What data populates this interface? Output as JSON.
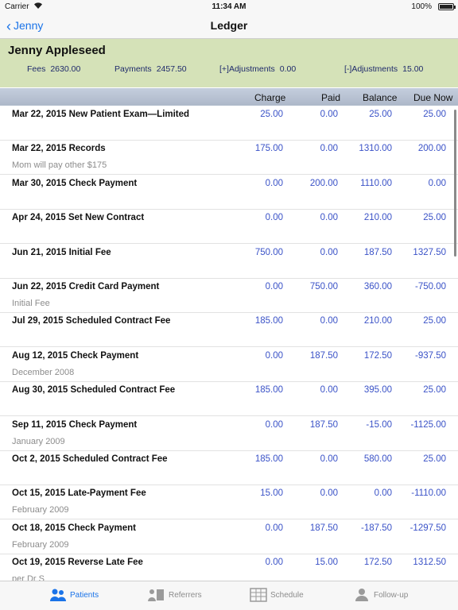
{
  "status": {
    "carrier": "Carrier",
    "time": "11:34 AM",
    "battery": "100%"
  },
  "nav": {
    "back_label": "Jenny",
    "title": "Ledger"
  },
  "patient": {
    "name": "Jenny Appleseed",
    "fees_label": "Fees",
    "fees": "2630.00",
    "payments_label": "Payments",
    "payments": "2457.50",
    "plus_adj_label": "[+]Adjustments",
    "plus_adj": "0.00",
    "minus_adj_label": "[-]Adjustments",
    "minus_adj": "15.00"
  },
  "columns": {
    "charge": "Charge",
    "paid": "Paid",
    "balance": "Balance",
    "due": "Due Now"
  },
  "rows": [
    {
      "desc": "Mar 22, 2015 New Patient Exam—Limited",
      "note": "",
      "charge": "25.00",
      "paid": "0.00",
      "balance": "25.00",
      "due": "25.00"
    },
    {
      "desc": "Mar 22, 2015 Records",
      "note": "Mom will pay other $175",
      "charge": "175.00",
      "paid": "0.00",
      "balance": "1310.00",
      "due": "200.00"
    },
    {
      "desc": "Mar 30, 2015 Check Payment",
      "note": "",
      "charge": "0.00",
      "paid": "200.00",
      "balance": "1110.00",
      "due": "0.00"
    },
    {
      "desc": "Apr 24, 2015 Set New Contract",
      "note": "",
      "charge": "0.00",
      "paid": "0.00",
      "balance": "210.00",
      "due": "25.00"
    },
    {
      "desc": "Jun 21, 2015 Initial Fee",
      "note": "",
      "charge": "750.00",
      "paid": "0.00",
      "balance": "187.50",
      "due": "1327.50"
    },
    {
      "desc": "Jun 22, 2015 Credit Card Payment",
      "note": "Initial Fee",
      "charge": "0.00",
      "paid": "750.00",
      "balance": "360.00",
      "due": "-750.00"
    },
    {
      "desc": "Jul 29, 2015 Scheduled Contract Fee",
      "note": "",
      "charge": "185.00",
      "paid": "0.00",
      "balance": "210.00",
      "due": "25.00"
    },
    {
      "desc": "Aug 12, 2015 Check Payment",
      "note": "December 2008",
      "charge": "0.00",
      "paid": "187.50",
      "balance": "172.50",
      "due": "-937.50"
    },
    {
      "desc": "Aug 30, 2015 Scheduled Contract Fee",
      "note": "",
      "charge": "185.00",
      "paid": "0.00",
      "balance": "395.00",
      "due": "25.00"
    },
    {
      "desc": "Sep 11, 2015 Check Payment",
      "note": "January 2009",
      "charge": "0.00",
      "paid": "187.50",
      "balance": "-15.00",
      "due": "-1125.00"
    },
    {
      "desc": "Oct 2, 2015 Scheduled Contract Fee",
      "note": "",
      "charge": "185.00",
      "paid": "0.00",
      "balance": "580.00",
      "due": "25.00"
    },
    {
      "desc": "Oct 15, 2015 Late-Payment Fee",
      "note": "February 2009",
      "charge": "15.00",
      "paid": "0.00",
      "balance": "0.00",
      "due": "-1110.00"
    },
    {
      "desc": "Oct 18, 2015 Check Payment",
      "note": "February 2009",
      "charge": "0.00",
      "paid": "187.50",
      "balance": "-187.50",
      "due": "-1297.50"
    },
    {
      "desc": "Oct 19, 2015 Reverse Late Fee",
      "note": "per Dr S",
      "charge": "0.00",
      "paid": "15.00",
      "balance": "172.50",
      "due": "1312.50"
    }
  ],
  "tabs": [
    {
      "label": "Patients",
      "icon": "patients-icon",
      "active": true
    },
    {
      "label": "Referrers",
      "icon": "referrers-icon",
      "active": false
    },
    {
      "label": "Schedule",
      "icon": "schedule-icon",
      "active": false
    },
    {
      "label": "Follow-up",
      "icon": "follow-up-icon",
      "active": false
    }
  ],
  "colors": {
    "accent": "#1a73e8",
    "summary_bg": "#d5e2b8",
    "value_blue": "#3a52c7",
    "note_gray": "#8c8c8c"
  }
}
